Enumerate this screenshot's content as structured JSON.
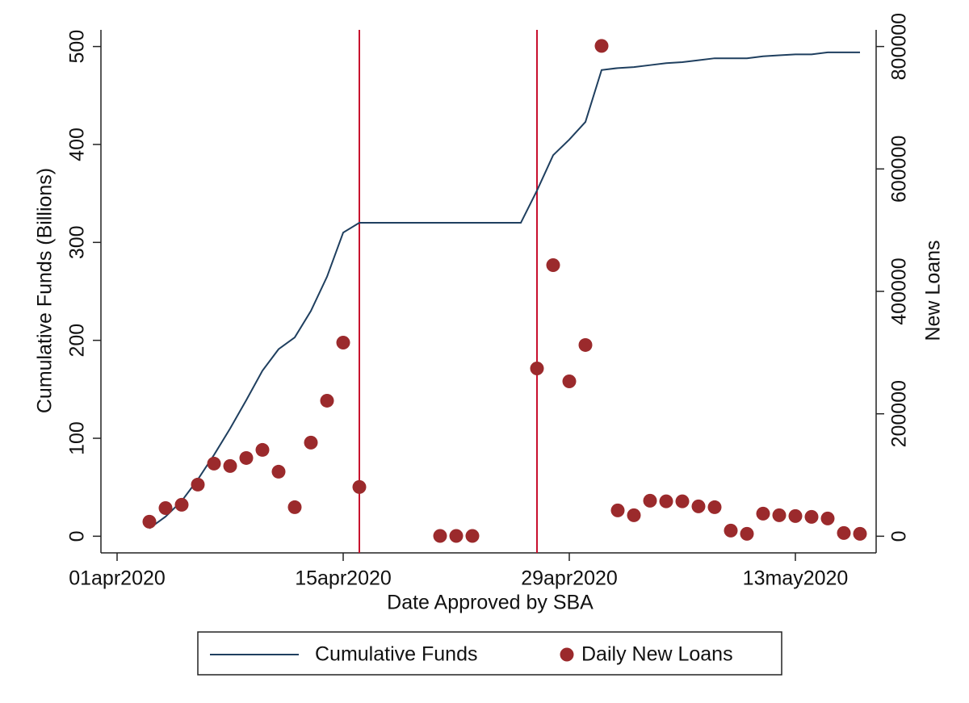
{
  "chart_data": {
    "type": "line",
    "xlabel": "Date Approved by SBA",
    "ylabel": "Cumulative Funds (Billions)",
    "y2label": "New Loans",
    "x": [
      "2020-04-03",
      "2020-04-04",
      "2020-04-05",
      "2020-04-06",
      "2020-04-07",
      "2020-04-08",
      "2020-04-09",
      "2020-04-10",
      "2020-04-11",
      "2020-04-12",
      "2020-04-13",
      "2020-04-14",
      "2020-04-15",
      "2020-04-16",
      "2020-04-17",
      "2020-04-18",
      "2020-04-19",
      "2020-04-20",
      "2020-04-21",
      "2020-04-22",
      "2020-04-23",
      "2020-04-24",
      "2020-04-25",
      "2020-04-26",
      "2020-04-27",
      "2020-04-28",
      "2020-04-29",
      "2020-04-30",
      "2020-05-01",
      "2020-05-02",
      "2020-05-03",
      "2020-05-04",
      "2020-05-05",
      "2020-05-06",
      "2020-05-07",
      "2020-05-08",
      "2020-05-09",
      "2020-05-10",
      "2020-05-11",
      "2020-05-12",
      "2020-05-13",
      "2020-05-14",
      "2020-05-15",
      "2020-05-16",
      "2020-05-17"
    ],
    "series": [
      {
        "name": "Cumulative Funds",
        "color": "#1f3f5f",
        "kind": "line",
        "values": [
          8,
          20,
          36,
          58,
          83,
          110,
          139,
          169,
          191,
          203,
          230,
          265,
          310,
          320,
          320,
          320,
          320,
          320,
          320,
          320,
          320,
          320,
          320,
          320,
          353,
          389,
          405,
          423,
          476,
          478,
          479,
          481,
          483,
          484,
          486,
          488,
          488,
          488,
          490,
          491,
          492,
          492,
          494,
          494,
          494
        ]
      },
      {
        "name": "Daily New Loans",
        "color": "#9b2a2c",
        "kind": "scatter",
        "axis": "y2",
        "values": [
          23700,
          46000,
          51400,
          84300,
          118600,
          114700,
          127800,
          141000,
          105400,
          47400,
          152900,
          221400,
          316300,
          80400,
          null,
          null,
          null,
          null,
          500,
          500,
          500,
          null,
          null,
          null,
          274100,
          442800,
          253000,
          312400,
          801000,
          42200,
          34300,
          58000,
          57000,
          57000,
          48800,
          47400,
          9200,
          4000,
          36900,
          34300,
          33000,
          31600,
          29000,
          5300,
          4000
        ]
      }
    ],
    "vlines": [
      "2020-04-16",
      "2020-04-27"
    ],
    "vline_color": "#c8102e",
    "xlim": [
      "2020-03-31",
      "2020-05-18"
    ],
    "xticks": [
      {
        "value": "2020-04-01",
        "label": "01apr2020"
      },
      {
        "value": "2020-04-15",
        "label": "15apr2020"
      },
      {
        "value": "2020-04-29",
        "label": "29apr2020"
      },
      {
        "value": "2020-05-13",
        "label": "13may2020"
      }
    ],
    "ylim": [
      -17,
      517
    ],
    "yticks": [
      0,
      100,
      200,
      300,
      400,
      500
    ],
    "y2lim": [
      -27200,
      827200
    ],
    "y2ticks": [
      0,
      200000,
      400000,
      600000,
      800000
    ],
    "legend": "bottom"
  }
}
